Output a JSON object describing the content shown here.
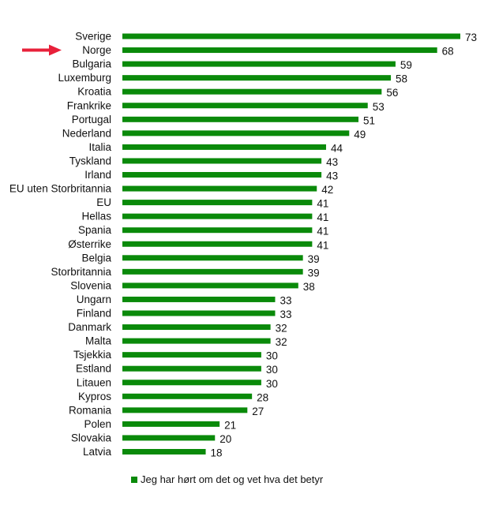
{
  "chart_data": {
    "type": "bar",
    "orientation": "horizontal",
    "categories": [
      "Sverige",
      "Norge",
      "Bulgaria",
      "Luxemburg",
      "Kroatia",
      "Frankrike",
      "Portugal",
      "Nederland",
      "Italia",
      "Tyskland",
      "Irland",
      "EU uten Storbritannia",
      "EU",
      "Hellas",
      "Spania",
      "Østerrike",
      "Belgia",
      "Storbritannia",
      "Slovenia",
      "Ungarn",
      "Finland",
      "Danmark",
      "Malta",
      "Tsjekkia",
      "Estland",
      "Litauen",
      "Kypros",
      "Romania",
      "Polen",
      "Slovakia",
      "Latvia"
    ],
    "series": [
      {
        "name": "Jeg har hørt om det og vet hva det betyr",
        "values": [
          73,
          68,
          59,
          58,
          56,
          53,
          51,
          49,
          44,
          43,
          43,
          42,
          41,
          41,
          41,
          41,
          39,
          39,
          38,
          33,
          33,
          32,
          32,
          30,
          30,
          30,
          28,
          27,
          21,
          20,
          18
        ],
        "color": "#0a8a0a"
      }
    ],
    "xlim": [
      0,
      73
    ],
    "grid": false,
    "legend_position": "bottom",
    "highlighted_category": "Norge",
    "highlight_color": "#e8203a"
  }
}
